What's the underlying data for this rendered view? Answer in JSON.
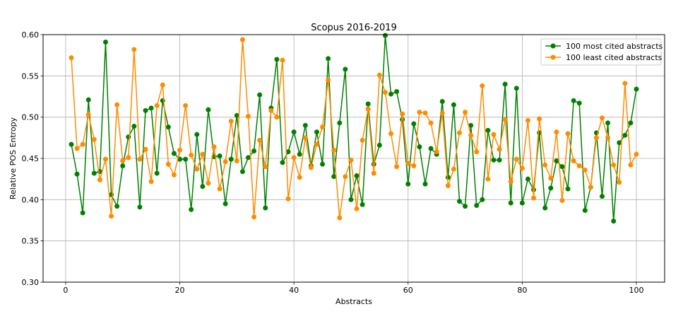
{
  "chart_data": {
    "type": "line",
    "title": "Scopus 2016-2019",
    "xlabel": "Abstracts",
    "ylabel": "Relative POS Entropy",
    "xlim": [
      -3.95,
      104.95
    ],
    "ylim": [
      0.3,
      0.6
    ],
    "xticks": [
      0,
      20,
      40,
      60,
      80,
      100
    ],
    "xtick_labels": [
      "0",
      "20",
      "40",
      "60",
      "80",
      "100"
    ],
    "yticks": [
      0.3,
      0.35,
      0.4,
      0.45,
      0.5,
      0.55,
      0.6
    ],
    "ytick_labels": [
      "0.30",
      "0.35",
      "0.40",
      "0.45",
      "0.50",
      "0.55",
      "0.60"
    ],
    "grid": true,
    "legend_position": "top-right",
    "x": [
      1,
      2,
      3,
      4,
      5,
      6,
      7,
      8,
      9,
      10,
      11,
      12,
      13,
      14,
      15,
      16,
      17,
      18,
      19,
      20,
      21,
      22,
      23,
      24,
      25,
      26,
      27,
      28,
      29,
      30,
      31,
      32,
      33,
      34,
      35,
      36,
      37,
      38,
      39,
      40,
      41,
      42,
      43,
      44,
      45,
      46,
      47,
      48,
      49,
      50,
      51,
      52,
      53,
      54,
      55,
      56,
      57,
      58,
      59,
      60,
      61,
      62,
      63,
      64,
      65,
      66,
      67,
      68,
      69,
      70,
      71,
      72,
      73,
      74,
      75,
      76,
      77,
      78,
      79,
      80,
      81,
      82,
      83,
      84,
      85,
      86,
      87,
      88,
      89,
      90,
      91,
      92,
      93,
      94,
      95,
      96,
      97,
      98,
      99,
      100
    ],
    "series": [
      {
        "name": "100 most cited abstracts",
        "color": "#008000",
        "values": [
          0.467,
          0.431,
          0.384,
          0.521,
          0.432,
          0.434,
          0.591,
          0.406,
          0.392,
          0.441,
          0.476,
          0.489,
          0.391,
          0.508,
          0.511,
          0.432,
          0.52,
          0.488,
          0.456,
          0.449,
          0.449,
          0.388,
          0.479,
          0.416,
          0.509,
          0.452,
          0.453,
          0.395,
          0.449,
          0.502,
          0.434,
          0.451,
          0.459,
          0.527,
          0.39,
          0.511,
          0.57,
          0.445,
          0.458,
          0.482,
          0.455,
          0.49,
          0.441,
          0.482,
          0.443,
          0.571,
          0.428,
          0.493,
          0.558,
          0.4,
          0.429,
          0.394,
          0.516,
          0.443,
          0.466,
          0.599,
          0.528,
          0.531,
          0.497,
          0.419,
          0.492,
          0.464,
          0.419,
          0.462,
          0.455,
          0.519,
          0.427,
          0.515,
          0.398,
          0.392,
          0.49,
          0.393,
          0.4,
          0.484,
          0.448,
          0.448,
          0.54,
          0.396,
          0.535,
          0.396,
          0.425,
          0.412,
          0.481,
          0.39,
          0.414,
          0.447,
          0.44,
          0.413,
          0.52,
          0.517,
          0.387,
          0.415,
          0.481,
          0.404,
          0.493,
          0.374,
          0.469,
          0.478,
          0.493,
          0.534
        ]
      },
      {
        "name": "100 least cited abstracts",
        "color": "#ff8c00",
        "values": [
          0.572,
          0.462,
          0.467,
          0.503,
          0.473,
          0.424,
          0.449,
          0.38,
          0.515,
          0.447,
          0.451,
          0.582,
          0.449,
          0.461,
          0.422,
          0.514,
          0.539,
          0.443,
          0.43,
          0.46,
          0.514,
          0.454,
          0.437,
          0.455,
          0.42,
          0.464,
          0.413,
          0.446,
          0.495,
          0.447,
          0.594,
          0.501,
          0.379,
          0.472,
          0.44,
          0.508,
          0.5,
          0.569,
          0.401,
          0.451,
          0.427,
          0.475,
          0.439,
          0.467,
          0.488,
          0.545,
          0.46,
          0.378,
          0.428,
          0.448,
          0.389,
          0.472,
          0.51,
          0.432,
          0.551,
          0.53,
          0.48,
          0.44,
          0.504,
          0.444,
          0.441,
          0.506,
          0.505,
          0.493,
          0.458,
          0.505,
          0.417,
          0.437,
          0.481,
          0.506,
          0.478,
          0.458,
          0.538,
          0.425,
          0.479,
          0.461,
          0.497,
          0.422,
          0.449,
          0.438,
          0.496,
          0.402,
          0.498,
          0.442,
          0.426,
          0.482,
          0.399,
          0.48,
          0.447,
          0.441,
          0.436,
          0.415,
          0.475,
          0.499,
          0.475,
          0.442,
          0.421,
          0.541,
          0.442,
          0.455
        ]
      }
    ]
  }
}
